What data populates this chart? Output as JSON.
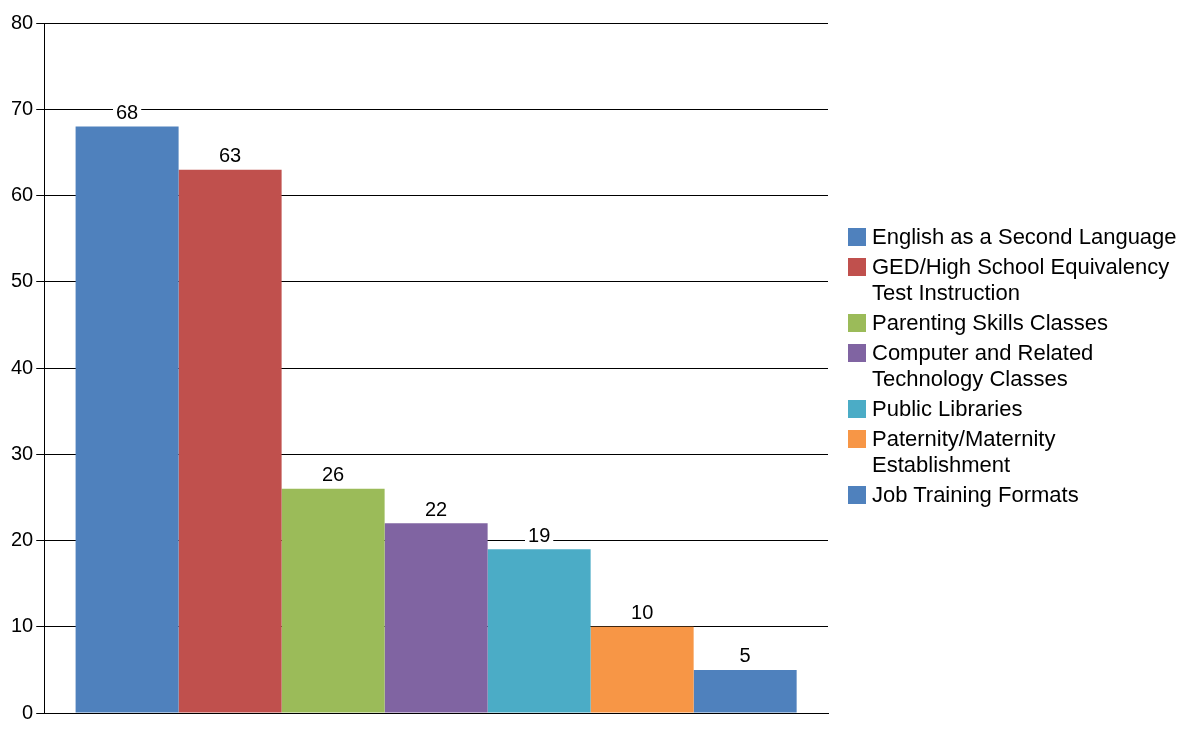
{
  "chart_data": {
    "type": "bar",
    "categories": [
      null
    ],
    "series": [
      {
        "name": "English as a Second Language",
        "color": "#4f81bd",
        "values": [
          68
        ]
      },
      {
        "name": "GED/High School Equivalency Test Instruction",
        "color": "#c0504d",
        "values": [
          63
        ]
      },
      {
        "name": "Parenting Skills Classes",
        "color": "#9bbb59",
        "values": [
          26
        ]
      },
      {
        "name": "Computer and Related Technology Classes",
        "color": "#8064a2",
        "values": [
          22
        ]
      },
      {
        "name": "Public Libraries",
        "color": "#4bacc6",
        "values": [
          19
        ]
      },
      {
        "name": "Paternity/Maternity Establishment",
        "color": "#f79646",
        "values": [
          10
        ]
      },
      {
        "name": "Job Training Formats",
        "color": "#4f81bd",
        "values": [
          5
        ]
      }
    ],
    "ylim": [
      0,
      80
    ],
    "yticks": [
      0,
      10,
      20,
      30,
      40,
      50,
      60,
      70,
      80
    ],
    "grid": "y",
    "legend": "right",
    "data_labels": true
  }
}
